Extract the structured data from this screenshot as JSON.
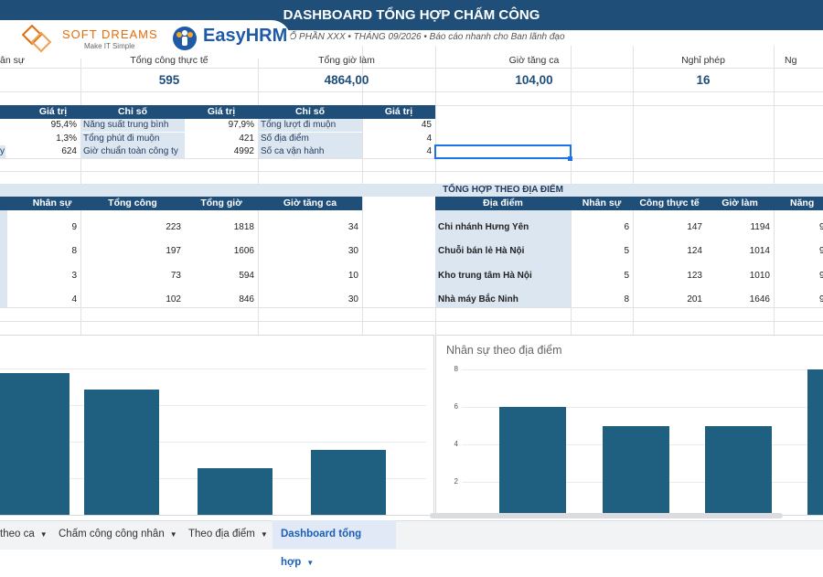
{
  "header": {
    "title": "DASHBOARD TỔNG HỢP CHẤM CÔNG",
    "subtitle": "Y CỔ PHẦN XXX • THÁNG 09/2026 • Báo cáo nhanh cho Ban lãnh đạo"
  },
  "logos": {
    "softdreams_name": "SOFT DREAMS",
    "softdreams_tagline": "Make IT Simple",
    "easyhrm_name": "EasyHRM"
  },
  "kpis": [
    {
      "label": "ân sự",
      "value": ""
    },
    {
      "label": "Tổng công thực tế",
      "value": "595"
    },
    {
      "label": "Tổng giờ làm",
      "value": "4864,00"
    },
    {
      "label": "Giờ tăng ca",
      "value": "104,00"
    },
    {
      "label": "Nghỉ phép",
      "value": "16"
    },
    {
      "label": "Ng",
      "value": ""
    }
  ],
  "metrics": {
    "headers": {
      "chiso": "Chỉ số",
      "giatri": "Giá trị"
    },
    "col_a_values": [
      "95,4%",
      "1,3%",
      "624"
    ],
    "col_a_partial": "y",
    "col_b": [
      {
        "label": "Năng suất trung bình",
        "value": "97,9%"
      },
      {
        "label": "Tổng phút đi muộn",
        "value": "421"
      },
      {
        "label": "Giờ chuẩn toàn công ty",
        "value": "4992"
      }
    ],
    "col_c": [
      {
        "label": "Tổng lượt đi muộn",
        "value": "45"
      },
      {
        "label": "Số địa điểm",
        "value": "4"
      },
      {
        "label": "Số ca vận hành",
        "value": "4"
      }
    ]
  },
  "left_table": {
    "headers": [
      "Nhân sự",
      "Tổng công",
      "Tổng giờ",
      "Giờ tăng ca"
    ],
    "rows": [
      [
        "9",
        "223",
        "1818",
        "34"
      ],
      [
        "8",
        "197",
        "1606",
        "30"
      ],
      [
        "3",
        "73",
        "594",
        "10"
      ],
      [
        "4",
        "102",
        "846",
        "30"
      ]
    ]
  },
  "location_table": {
    "title": "TỔNG HỢP THEO ĐỊA ĐIỂM",
    "headers": [
      "Địa điểm",
      "Nhân sự",
      "Công thực tế",
      "Giờ làm",
      "Năng su"
    ],
    "rows": [
      {
        "name": "Chi nhánh Hưng Yên",
        "nhansu": "6",
        "cong": "147",
        "gio": "1194",
        "ns": "9"
      },
      {
        "name": "Chuỗi bán lẻ Hà Nội",
        "nhansu": "5",
        "cong": "124",
        "gio": "1014",
        "ns": "9"
      },
      {
        "name": "Kho trung tâm Hà Nội",
        "nhansu": "5",
        "cong": "123",
        "gio": "1010",
        "ns": "9"
      },
      {
        "name": "Nhà máy Bắc Ninh",
        "nhansu": "8",
        "cong": "201",
        "gio": "1646",
        "ns": "9"
      }
    ]
  },
  "chart_data": [
    {
      "type": "bar",
      "title": "",
      "categories": [
        "",
        "",
        "",
        ""
      ],
      "values": [
        223,
        197,
        73,
        102
      ],
      "color": "#1f5f80"
    },
    {
      "type": "bar",
      "title": "Nhân sự theo địa điểm",
      "categories": [
        "Chi nhánh Hưng Yên",
        "Chuỗi bán lẻ Hà Nội",
        "Kho trung tâm Hà Nội",
        "Nhà máy Bắc Ninh"
      ],
      "values": [
        6,
        5,
        5,
        8
      ],
      "yticks": [
        "8",
        "6",
        "4",
        "2"
      ],
      "ylim": [
        0,
        8
      ],
      "color": "#1f5f80"
    }
  ],
  "tabs": [
    {
      "label": "theo ca",
      "active": false
    },
    {
      "label": "Chấm công công nhân",
      "active": false
    },
    {
      "label": "Theo địa điểm",
      "active": false
    },
    {
      "label": "Dashboard tổng hợp",
      "active": true
    }
  ],
  "colors": {
    "primary": "#1f4e79",
    "bar": "#1f5f80",
    "light": "#dce6f1",
    "accent": "#1a73e8"
  }
}
